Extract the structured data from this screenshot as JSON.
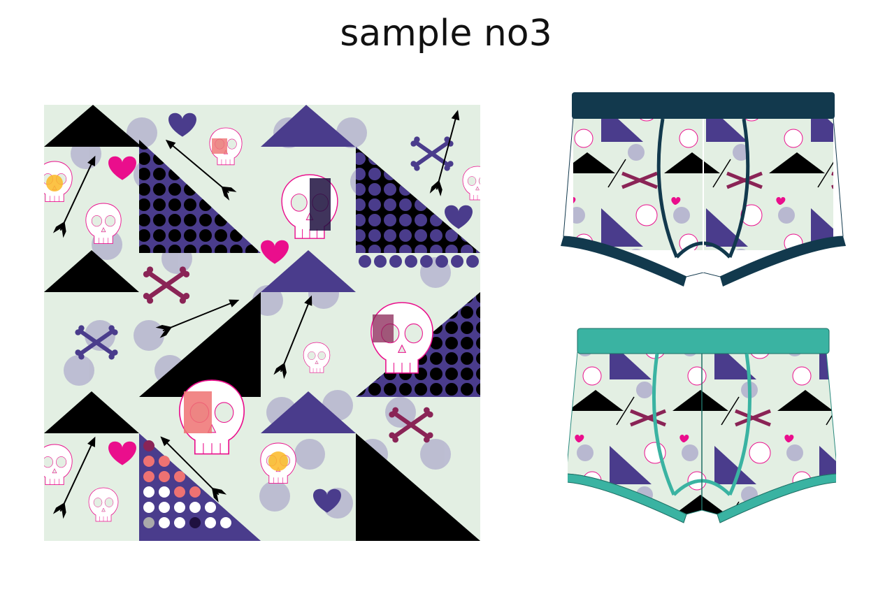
{
  "title": "sample no3",
  "palette": {
    "background": "#e3efe3",
    "purple": "#4a3c8c",
    "navy_dots": "#1f1040",
    "lavender_circle": "#b8b8d0",
    "black": "#000000",
    "hot_pink": "#ea0e8c",
    "plum": "#8a2456",
    "salmon": "#ee7272",
    "yellow": "#fbb826",
    "teal": "#3ab3a2",
    "dark_teal": "#12394d"
  },
  "icons": [
    "skull-icon",
    "crossbones-icon",
    "arrow-icon",
    "heart-icon",
    "triangle-shape",
    "dot-pattern"
  ],
  "products": [
    {
      "name": "boxer-brief",
      "waistband_color": "#12394d"
    },
    {
      "name": "boxer-brief",
      "waistband_color": "#3ab3a2"
    }
  ]
}
